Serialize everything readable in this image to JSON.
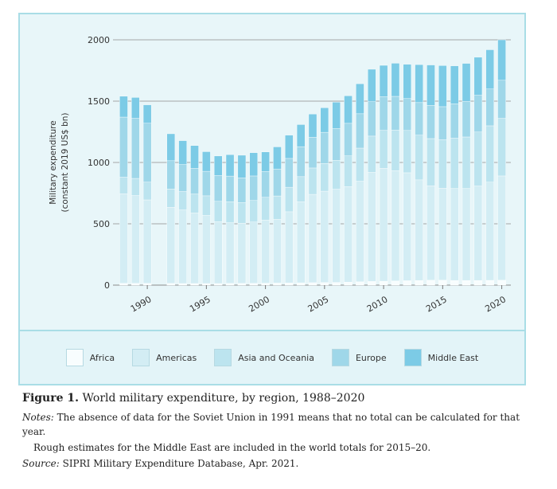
{
  "chart_data": {
    "type": "bar",
    "stacked": true,
    "title": "World military expenditure, by region, 1988–2020",
    "ylabel_line1": "Military expenditure",
    "ylabel_line2": "(constant 2019 US$ bn)",
    "ylim": [
      0,
      2000
    ],
    "yticks": [
      "0",
      "500",
      "1000",
      "1500",
      "2000"
    ],
    "ytick_values": [
      0,
      500,
      1000,
      1500,
      2000
    ],
    "xticks": [
      {
        "year": 1990,
        "label": "1990"
      },
      {
        "year": 1995,
        "label": "1995"
      },
      {
        "year": 2000,
        "label": "2000"
      },
      {
        "year": 2005,
        "label": "2005"
      },
      {
        "year": 2010,
        "label": "2010"
      },
      {
        "year": 2015,
        "label": "2015"
      },
      {
        "year": 2020,
        "label": "2020"
      }
    ],
    "grid": true,
    "legend_placement": "bottom",
    "years": [
      1988,
      1989,
      1990,
      1991,
      1992,
      1993,
      1994,
      1995,
      1996,
      1997,
      1998,
      1999,
      2000,
      2001,
      2002,
      2003,
      2004,
      2005,
      2006,
      2007,
      2008,
      2009,
      2010,
      2011,
      2012,
      2013,
      2014,
      2015,
      2016,
      2017,
      2018,
      2019,
      2020
    ],
    "series": [
      {
        "name": "Africa",
        "color": "#f8fdfe",
        "values": [
          15,
          15,
          15,
          null,
          14,
          13,
          13,
          13,
          13,
          14,
          14,
          15,
          16,
          17,
          18,
          19,
          20,
          21,
          22,
          24,
          27,
          30,
          32,
          34,
          36,
          38,
          40,
          40,
          38,
          38,
          38,
          39,
          40
        ]
      },
      {
        "name": "Americas",
        "color": "#d3edf4",
        "values": [
          730,
          715,
          680,
          null,
          620,
          600,
          575,
          555,
          505,
          495,
          490,
          500,
          515,
          520,
          580,
          660,
          720,
          745,
          760,
          780,
          820,
          890,
          920,
          900,
          880,
          820,
          770,
          750,
          750,
          750,
          770,
          800,
          850
        ]
      },
      {
        "name": "Asia and Oceania",
        "color": "#bce4ef",
        "values": [
          135,
          140,
          145,
          null,
          150,
          150,
          155,
          160,
          165,
          170,
          170,
          175,
          185,
          190,
          200,
          205,
          215,
          225,
          235,
          250,
          270,
          295,
          310,
          330,
          345,
          365,
          385,
          395,
          410,
          420,
          440,
          460,
          470
        ]
      },
      {
        "name": "Europe",
        "color": "#9fd7e9",
        "values": [
          490,
          490,
          480,
          null,
          230,
          220,
          210,
          200,
          210,
          210,
          200,
          200,
          210,
          220,
          235,
          245,
          250,
          255,
          260,
          265,
          280,
          280,
          275,
          275,
          260,
          265,
          270,
          270,
          280,
          290,
          300,
          300,
          310
        ]
      },
      {
        "name": "Middle East",
        "color": "#7ccbe6",
        "values": [
          170,
          170,
          150,
          null,
          220,
          195,
          185,
          160,
          160,
          175,
          185,
          190,
          160,
          180,
          190,
          180,
          190,
          200,
          215,
          225,
          245,
          265,
          255,
          270,
          280,
          310,
          330,
          335,
          310,
          310,
          310,
          320,
          330
        ]
      }
    ]
  },
  "caption": {
    "figure_label": "Figure 1.",
    "figure_title": " World military expenditure, by region, 1988–2020",
    "notes_label": "Notes:",
    "notes_text": " The absence of data for the Soviet Union in 1991 means that no total can be calculated for that year.",
    "notes_line2": "Rough estimates for the Middle East are included in the world totals for 2015–20.",
    "source_label": "Source:",
    "source_text": " SIPRI Military Expenditure Database, Apr. 2021."
  }
}
